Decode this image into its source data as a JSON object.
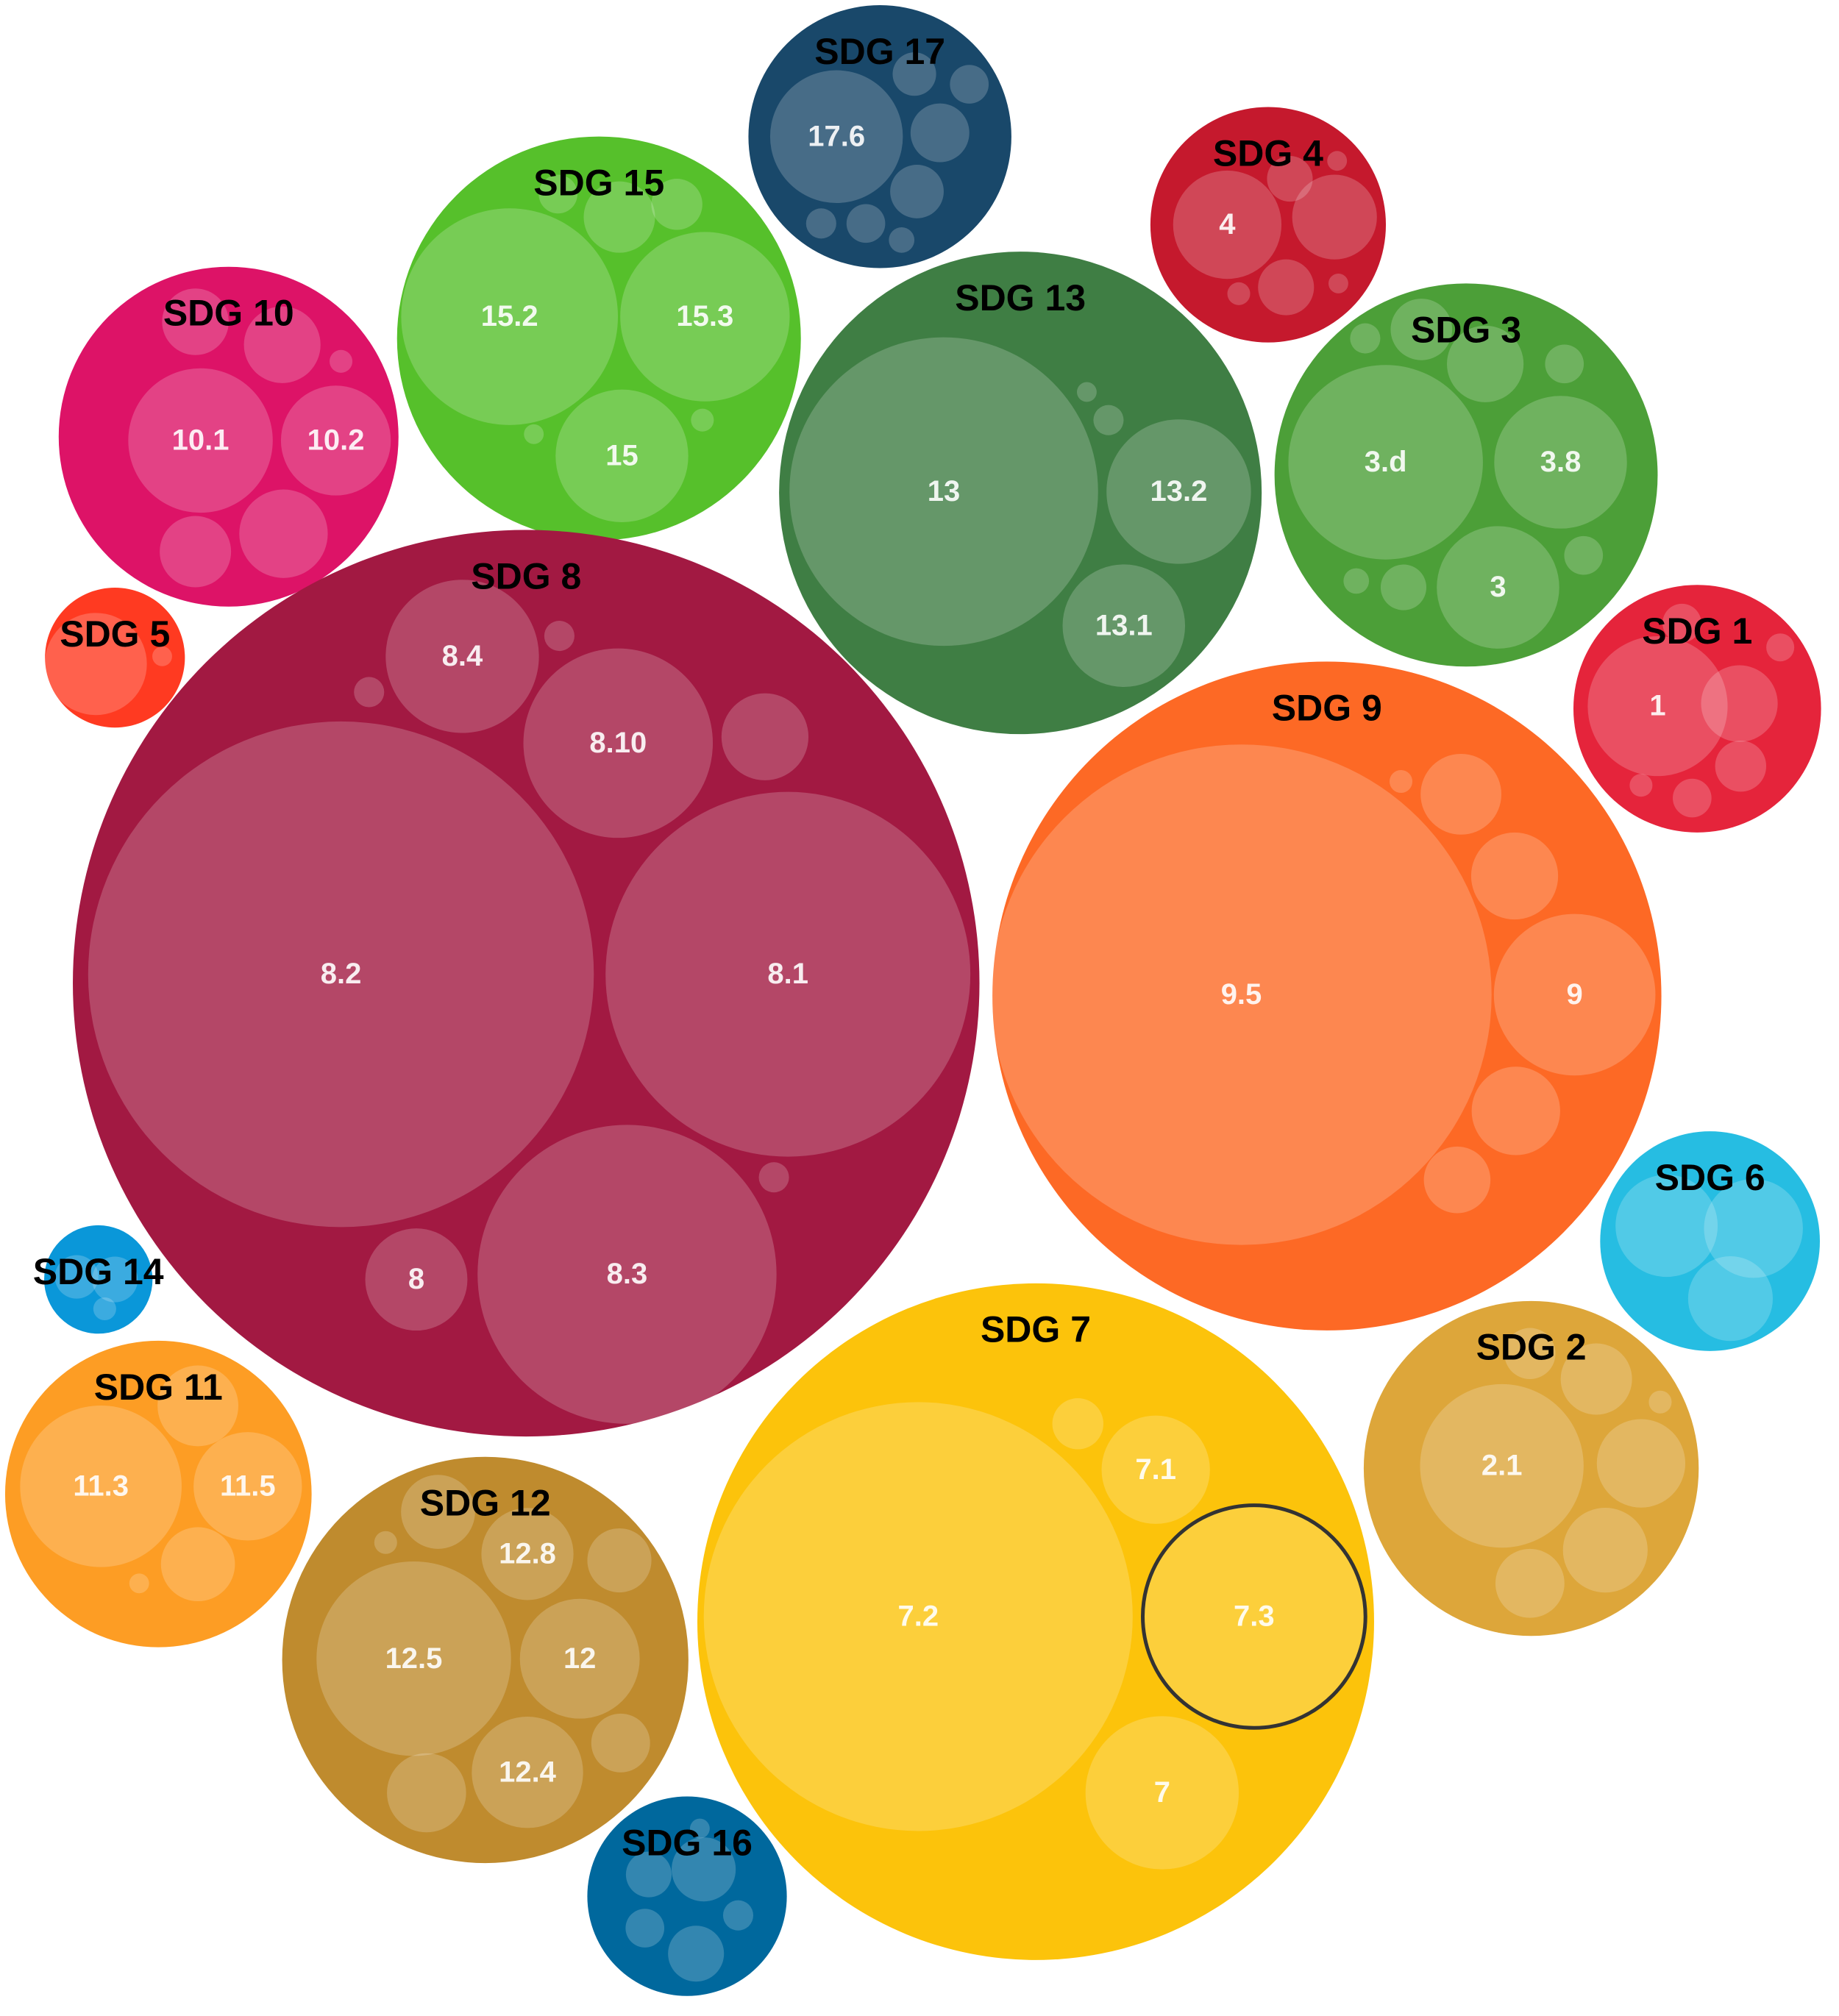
{
  "chart_data": {
    "type": "packed-bubble",
    "groups": [
      {
        "name": "SDG 17",
        "color": "#19486A",
        "value": 106,
        "labels": [
          "17.6",
          null,
          null,
          null,
          null,
          null,
          null,
          null
        ],
        "values": [
          27,
          2.9,
          2.3,
          5.3,
          4.4,
          2.3,
          1.4,
          1
        ]
      },
      {
        "name": "SDG 4",
        "color": "#C5192D",
        "value": 85,
        "labels": [
          "4",
          null,
          null,
          null,
          null,
          null,
          null
        ],
        "values": [
          18,
          11,
          4.8,
          3.2,
          0.8,
          0.6,
          0.6
        ]
      },
      {
        "name": "SDG 15",
        "color": "#56C02B",
        "value": 250,
        "labels": [
          "15.2",
          "15.3",
          "15",
          null,
          null,
          null,
          null,
          null
        ],
        "values": [
          72,
          44,
          27,
          7.8,
          4,
          2.3,
          0.8,
          0.6
        ]
      },
      {
        "name": "SDG 13",
        "color": "#3F7E44",
        "value": 357,
        "labels": [
          "13",
          "13.2",
          "13.1",
          null,
          null
        ],
        "values": [
          146,
          32,
          23,
          1.4,
          0.6
        ]
      },
      {
        "name": "SDG 3",
        "color": "#4C9F38",
        "value": 225,
        "labels": [
          "3.d",
          "3.8",
          "3",
          null,
          null,
          null,
          null,
          null,
          null,
          null
        ],
        "values": [
          58,
          27,
          23,
          9,
          5.8,
          2.3,
          1.4,
          2.3,
          3.2,
          1
        ]
      },
      {
        "name": "SDG 10",
        "color": "#DD1367",
        "value": 177,
        "labels": [
          "10.1",
          "10.2",
          null,
          null,
          null,
          null,
          null
        ],
        "values": [
          32,
          18.5,
          9,
          6.8,
          12,
          7.8,
          0.8
        ]
      },
      {
        "name": "SDG 5",
        "color": "#FF3A21",
        "value": 30,
        "labels": [
          null,
          null
        ],
        "values": [
          16,
          0.6
        ]
      },
      {
        "name": "SDG 8",
        "color": "#A21942",
        "value": 1260,
        "labels": [
          "8.2",
          "8.1",
          "8.3",
          "8.10",
          "8.4",
          "8",
          null,
          null,
          null,
          null
        ],
        "values": [
          392,
          204,
          137,
          55,
          36,
          16,
          11.6,
          1.4,
          1.4,
          1.4
        ]
      },
      {
        "name": "SDG 1",
        "color": "#E5243B",
        "value": 94,
        "labels": [
          "1",
          null,
          null,
          null,
          null,
          null,
          null
        ],
        "values": [
          30,
          9,
          4,
          2.3,
          1.2,
          2.3,
          0.8
        ]
      },
      {
        "name": "SDG 9",
        "color": "#FD6925",
        "value": 686,
        "labels": [
          "9.5",
          "9",
          null,
          null,
          null,
          null,
          null
        ],
        "values": [
          384,
          40,
          12,
          11.6,
          10,
          6.8,
          0.8
        ]
      },
      {
        "name": "SDG 6",
        "color": "#26BDE2",
        "value": 74,
        "labels": [
          null,
          null,
          null
        ],
        "values": [
          16,
          15,
          11
        ]
      },
      {
        "name": "SDG 14",
        "color": "#0A97D9",
        "value": 18,
        "labels": [
          null,
          null,
          null
        ],
        "values": [
          2.9,
          3.2,
          0.8
        ]
      },
      {
        "name": "SDG 11",
        "color": "#FD9D24",
        "value": 144,
        "labels": [
          "11.3",
          "11.5",
          null,
          null,
          null
        ],
        "values": [
          40,
          18,
          8.4,
          10,
          0.6
        ]
      },
      {
        "name": "SDG 7",
        "color": "#FCC30B",
        "value": 702,
        "labels": [
          "7.2",
          "7.3",
          "7.1",
          "7",
          null
        ],
        "values": [
          282,
          76,
          18,
          36,
          4
        ],
        "outlined": 1,
        "outline_color": "#333333"
      },
      {
        "name": "SDG 2",
        "color": "#DDA63A",
        "value": 172,
        "labels": [
          "2.1",
          null,
          null,
          null,
          null,
          null,
          null
        ],
        "values": [
          41,
          12,
          11,
          7.8,
          4,
          7.3,
          0.8
        ]
      },
      {
        "name": "SDG 12",
        "color": "#BF8B2E",
        "value": 253,
        "labels": [
          "12.5",
          "12",
          "12.8",
          "12.4",
          null,
          null,
          null,
          null,
          null
        ],
        "values": [
          58,
          22,
          13,
          19,
          6.3,
          5.3,
          9.6,
          8.4,
          0.8
        ]
      },
      {
        "name": "SDG 16",
        "color": "#00689D",
        "value": 61,
        "labels": [
          null,
          null,
          null,
          null,
          null,
          null
        ],
        "values": [
          6.3,
          3.2,
          4.8,
          2.3,
          1.4,
          0.6
        ]
      }
    ]
  }
}
